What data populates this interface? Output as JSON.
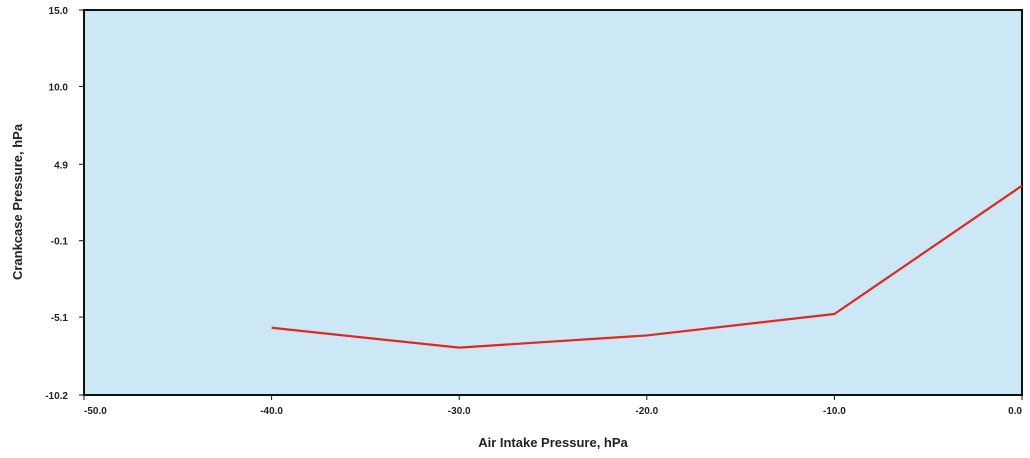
{
  "chart_data": {
    "type": "line",
    "xlabel": "Air Intake Pressure, hPa",
    "ylabel": "Crankcase Pressure, hPa",
    "xlim": [
      -50.0,
      0.0
    ],
    "ylim": [
      -10.2,
      15.0
    ],
    "x_ticks": [
      "-50.0",
      "-40.0",
      "-30.0",
      "-20.0",
      "-10.0",
      "0.0"
    ],
    "x_tick_values": [
      -50,
      -40,
      -30,
      -20,
      -10,
      0
    ],
    "y_ticks": [
      "15.0",
      "10.0",
      "4.9",
      "-0.1",
      "-5.1",
      "-10.2"
    ],
    "y_tick_values": [
      15.0,
      10.0,
      4.9,
      -0.1,
      -5.1,
      -10.2
    ],
    "grid": false,
    "plot_background": "#cce8f7",
    "series": [
      {
        "color": "#e0281e",
        "x": [
          -40,
          -30,
          -20,
          -10,
          0
        ],
        "y": [
          -5.8,
          -7.1,
          -6.3,
          -4.9,
          3.5
        ]
      }
    ]
  }
}
